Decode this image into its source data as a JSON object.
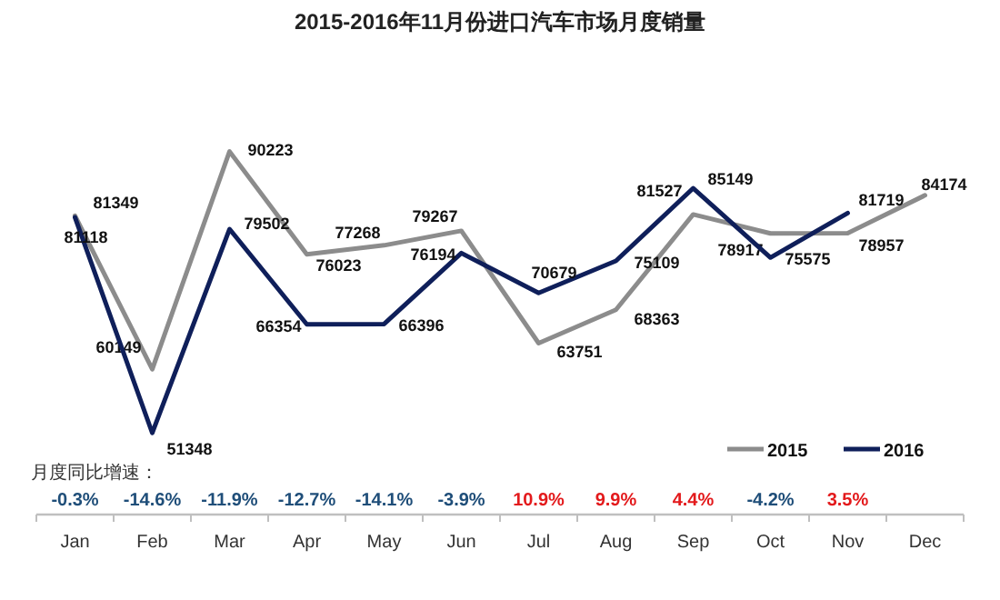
{
  "chart_data": {
    "type": "line",
    "title": "2015-2016年11月份进口汽车市场月度销量",
    "categories": [
      "Jan",
      "Feb",
      "Mar",
      "Apr",
      "May",
      "Jun",
      "Jul",
      "Aug",
      "Sep",
      "Oct",
      "Nov",
      "Dec"
    ],
    "series": [
      {
        "name": "2015",
        "color": "#8c8c8c",
        "values": [
          81349,
          60149,
          90223,
          76023,
          77268,
          79267,
          63751,
          68363,
          81527,
          78917,
          78957,
          84174
        ]
      },
      {
        "name": "2016",
        "color": "#0f1f5a",
        "values": [
          81118,
          51348,
          79502,
          66354,
          66396,
          76194,
          70679,
          75109,
          85149,
          75575,
          81719,
          null
        ]
      }
    ],
    "data_labels": true,
    "legend": "bottom right",
    "grid": false,
    "marker": "none",
    "line_style": "solid",
    "annotations": [
      "月度同比增速：",
      "-0.3%",
      "-14.6%",
      "-11.9%",
      "-12.7%",
      "-14.1%",
      "-3.9%",
      "10.9%",
      "9.9%",
      "4.4%",
      "-4.2%",
      "3.5%"
    ]
  }
}
